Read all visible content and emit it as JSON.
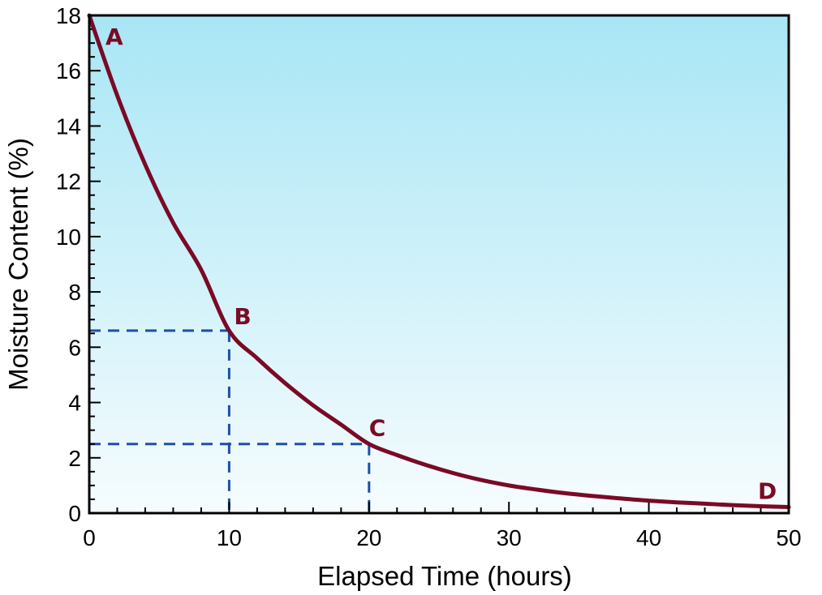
{
  "chart_data": {
    "type": "line",
    "xlabel": "Elapsed Time (hours)",
    "ylabel": "Moisture Content (%)",
    "xlim": [
      0,
      50
    ],
    "ylim": [
      0,
      18
    ],
    "x_ticks": [
      0,
      10,
      20,
      30,
      40,
      50
    ],
    "y_ticks": [
      0,
      2,
      4,
      6,
      8,
      10,
      12,
      14,
      16,
      18
    ],
    "grid": false,
    "legend": "none",
    "series": [
      {
        "x": [
          0,
          2,
          4,
          6,
          8,
          10,
          12,
          14,
          16,
          18,
          20,
          22,
          24,
          26,
          28,
          30,
          32,
          34,
          36,
          38,
          40,
          42,
          44,
          46,
          48,
          50
        ],
        "y": [
          18.0,
          15.1,
          12.6,
          10.5,
          8.8,
          6.6,
          5.6,
          4.7,
          3.9,
          3.2,
          2.5,
          2.1,
          1.75,
          1.45,
          1.2,
          1.0,
          0.85,
          0.72,
          0.62,
          0.53,
          0.45,
          0.39,
          0.34,
          0.29,
          0.25,
          0.22
        ],
        "color": "#7a0a26"
      }
    ],
    "annotations": [
      {
        "label": "A",
        "x": 0,
        "y": 18.0
      },
      {
        "label": "B",
        "x": 10,
        "y": 6.6
      },
      {
        "label": "C",
        "x": 20,
        "y": 2.5
      },
      {
        "label": "D",
        "x": 50,
        "y": 0.22
      }
    ],
    "reference_lines": [
      {
        "x": 10,
        "y": 6.6
      },
      {
        "x": 20,
        "y": 2.5
      }
    ],
    "colors": {
      "curve": "#7a0a26",
      "reference": "#1f4fa8",
      "background_top": "#a8e6f5",
      "background_bottom": "#f6fcfe"
    }
  }
}
